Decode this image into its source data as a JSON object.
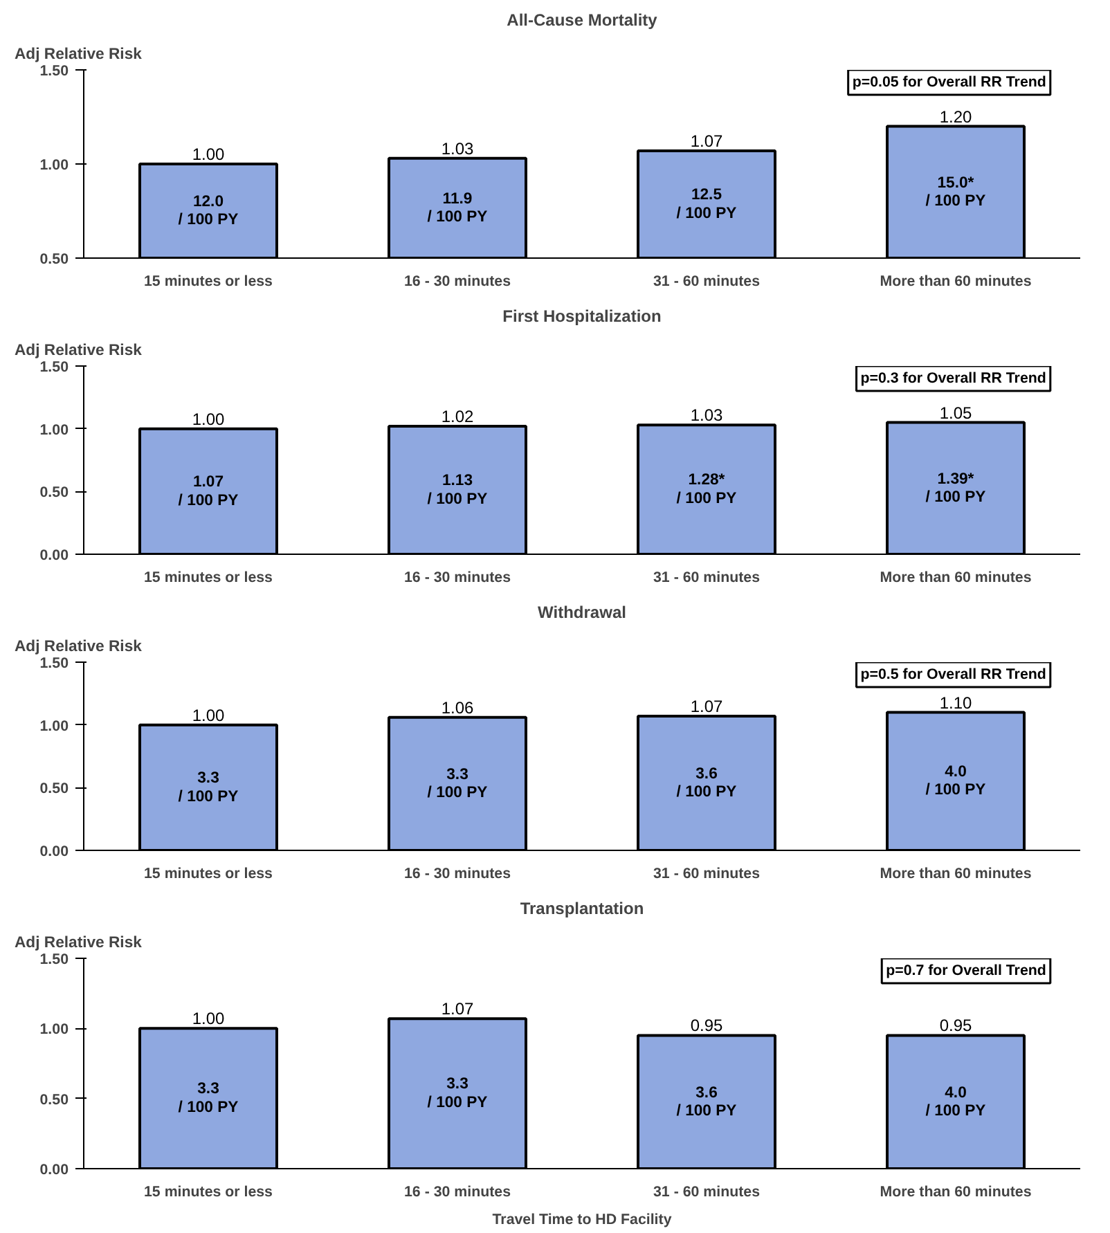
{
  "chart_data": [
    {
      "type": "bar",
      "title": "All-Cause Mortality",
      "ylabel": "Adj Relative Risk",
      "categories": [
        "15 minutes or less",
        "16 - 30 minutes",
        "31 - 60 minutes",
        "More than 60 minutes"
      ],
      "values": [
        1.0,
        1.03,
        1.07,
        1.2
      ],
      "value_labels": [
        "1.00",
        "1.03",
        "1.07",
        "1.20"
      ],
      "color": "#8fa8e0",
      "ylim": [
        0.5,
        1.5
      ],
      "yticks": [
        {
          "value": 0.5,
          "label": "0.50"
        },
        {
          "value": 1.0,
          "label": "1.00"
        },
        {
          "value": 1.5,
          "label": "1.50"
        }
      ],
      "grid": false,
      "annotations": [
        "p=0.05 for Overall RR Trend",
        "12.0\n/ 100 PY",
        "11.9\n/ 100 PY",
        "12.5\n/ 100 PY",
        "15.0*\n/ 100 PY"
      ]
    },
    {
      "type": "bar",
      "title": "First Hospitalization",
      "ylabel": "Adj Relative Risk",
      "categories": [
        "15 minutes or less",
        "16 - 30 minutes",
        "31 - 60 minutes",
        "More than 60 minutes"
      ],
      "values": [
        1.0,
        1.02,
        1.03,
        1.05
      ],
      "value_labels": [
        "1.00",
        "1.02",
        "1.03",
        "1.05"
      ],
      "color": "#8fa8e0",
      "ylim": [
        0,
        1.5
      ],
      "yticks": [
        {
          "value": 0,
          "label": "0.00"
        },
        {
          "value": 0.5,
          "label": "0.50"
        },
        {
          "value": 1.0,
          "label": "1.00"
        },
        {
          "value": 1.5,
          "label": "1.50"
        }
      ],
      "grid": false,
      "annotations": [
        "p=0.3 for Overall RR Trend",
        "1.07\n/ 100 PY",
        "1.13\n/ 100 PY",
        "1.28*\n/ 100 PY",
        "1.39*\n/ 100 PY"
      ]
    },
    {
      "type": "bar",
      "title": "Withdrawal",
      "ylabel": "Adj Relative Risk",
      "categories": [
        "15 minutes or less",
        "16 - 30 minutes",
        "31 - 60 minutes",
        "More than 60 minutes"
      ],
      "values": [
        1.0,
        1.06,
        1.07,
        1.1
      ],
      "value_labels": [
        "1.00",
        "1.06",
        "1.07",
        "1.10"
      ],
      "color": "#8fa8e0",
      "ylim": [
        0,
        1.5
      ],
      "yticks": [
        {
          "value": 0,
          "label": "0.00"
        },
        {
          "value": 0.5,
          "label": "0.50"
        },
        {
          "value": 1.0,
          "label": "1.00"
        },
        {
          "value": 1.5,
          "label": "1.50"
        }
      ],
      "grid": false,
      "annotations": [
        "p=0.5 for Overall RR Trend",
        "3.3\n/ 100 PY",
        "3.3\n/ 100 PY",
        "3.6\n/ 100 PY",
        "4.0\n/ 100 PY"
      ]
    },
    {
      "type": "bar",
      "title": "Transplantation",
      "ylabel": "Adj Relative Risk",
      "xlabel": "Travel Time to HD Facility",
      "categories": [
        "15 minutes or less",
        "16 - 30 minutes",
        "31 - 60 minutes",
        "More than 60 minutes"
      ],
      "values": [
        1.0,
        1.07,
        0.95,
        0.95
      ],
      "value_labels": [
        "1.00",
        "1.07",
        "0.95",
        "0.95"
      ],
      "color": "#8fa8e0",
      "ylim": [
        0,
        1.5
      ],
      "yticks": [
        {
          "value": 0,
          "label": "0.00"
        },
        {
          "value": 0.5,
          "label": "0.50"
        },
        {
          "value": 1.0,
          "label": "1.00"
        },
        {
          "value": 1.5,
          "label": "1.50"
        }
      ],
      "grid": false,
      "annotations": [
        "p=0.7 for Overall Trend",
        "3.3\n/ 100 PY",
        "3.3\n/ 100 PY",
        "3.6\n/ 100 PY",
        "4.0\n/ 100 PY"
      ]
    }
  ]
}
